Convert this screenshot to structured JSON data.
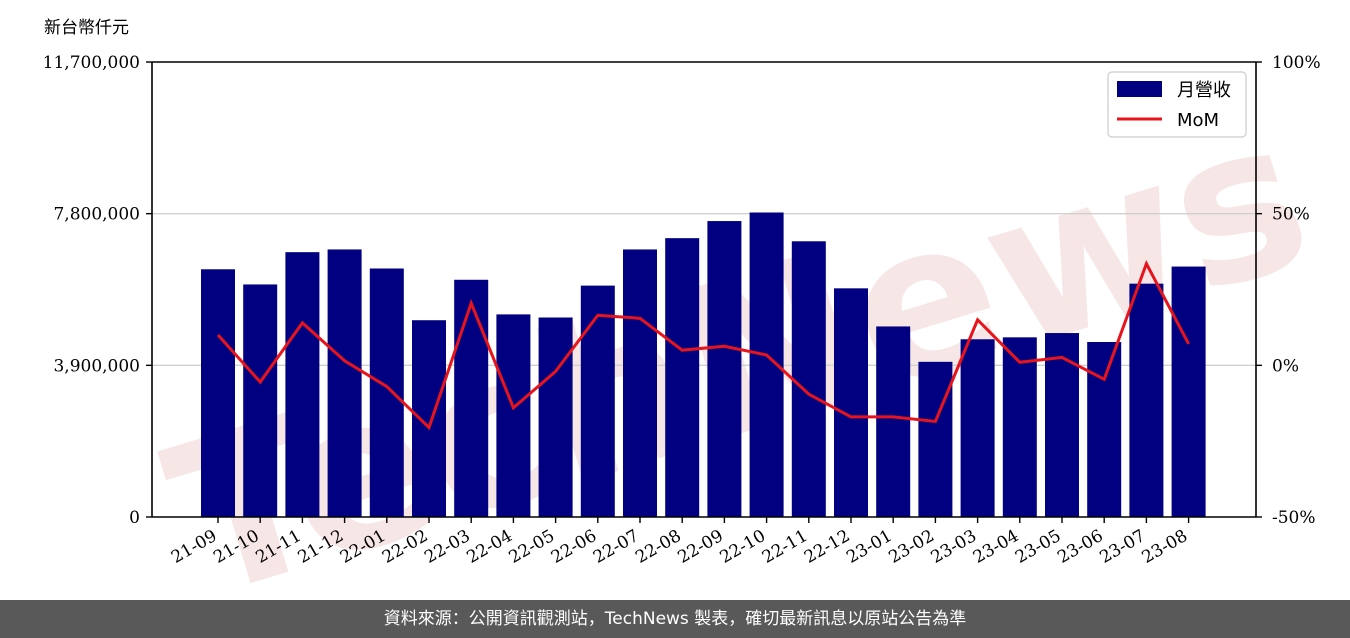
{
  "chart_data": {
    "type": "bar",
    "unit_label": "新台幣仟元",
    "categories": [
      "21-09",
      "21-10",
      "21-11",
      "21-12",
      "22-01",
      "22-02",
      "22-03",
      "22-04",
      "22-05",
      "22-06",
      "22-07",
      "22-08",
      "22-09",
      "22-10",
      "22-11",
      "22-12",
      "23-01",
      "23-02",
      "23-03",
      "23-04",
      "23-05",
      "23-06",
      "23-07",
      "23-08"
    ],
    "series": [
      {
        "name": "月營收",
        "kind": "bar",
        "axis": "left",
        "color": "#000080",
        "values": [
          6370000,
          5980000,
          6810000,
          6880000,
          6390000,
          5060000,
          6100000,
          5210000,
          5130000,
          5950000,
          6880000,
          7170000,
          7610000,
          7830000,
          7090000,
          5880000,
          4900000,
          3990000,
          4570000,
          4620000,
          4730000,
          4500000,
          6000000,
          6440000
        ]
      },
      {
        "name": "MoM",
        "kind": "line",
        "axis": "right",
        "color": "#e8141b",
        "values": [
          10,
          -5.5,
          14,
          1.5,
          -7,
          -20.5,
          20.5,
          -14,
          -2,
          16.5,
          15.5,
          5,
          6.3,
          3.4,
          -9.5,
          -17,
          -17,
          -18.5,
          15,
          1,
          2.6,
          -4.6,
          33.5,
          7.1
        ]
      }
    ],
    "y_left": {
      "ticks": [
        "0",
        "3,900,000",
        "7,800,000",
        "11,700,000"
      ],
      "tick_values": [
        0,
        3900000,
        7800000,
        11700000
      ],
      "lim": [
        0,
        11700000
      ]
    },
    "y_right": {
      "ticks": [
        "-50%",
        "0%",
        "50%",
        "100%"
      ],
      "tick_values": [
        -50,
        0,
        50,
        100
      ],
      "lim": [
        -50,
        100
      ]
    },
    "grid": "horizontal",
    "legend_position": "top-right",
    "watermark": "TechNews"
  },
  "footer": {
    "text": "資料來源：公開資訊觀測站，TechNews 製表，確切最新訊息以原站公告為準"
  }
}
